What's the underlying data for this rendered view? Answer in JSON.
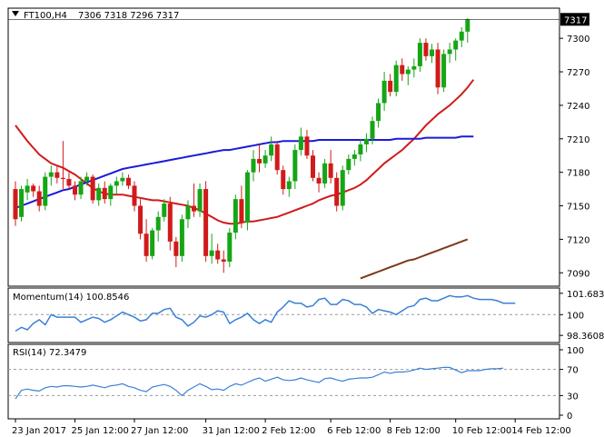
{
  "chart_data": [
    {
      "type": "candlestick",
      "title": "FT100,H4",
      "ohlc_label": "7306 7318 7296 7317",
      "ylim": [
        7078,
        7327
      ],
      "y_ticks": [
        7300,
        7270,
        7240,
        7210,
        7180,
        7150,
        7120,
        7090
      ],
      "last_price_label": "7317",
      "last_price": 7317,
      "x_ticks": [
        "23 Jan 2017",
        "25 Jan 12:00",
        "27 Jan 12:00",
        "31 Jan 12:00",
        "2 Feb 12:00",
        "6 Feb 12:00",
        "8 Feb 12:00",
        "10 Feb 12:00",
        "14 Feb 12:00"
      ],
      "x_tick_index": [
        0,
        10,
        20,
        32,
        42,
        53,
        63,
        74,
        84
      ],
      "candles": [
        [
          7165,
          7172,
          7132,
          7138
        ],
        [
          7140,
          7168,
          7136,
          7165
        ],
        [
          7162,
          7174,
          7155,
          7168
        ],
        [
          7168,
          7170,
          7158,
          7163
        ],
        [
          7163,
          7168,
          7145,
          7150
        ],
        [
          7150,
          7180,
          7146,
          7176
        ],
        [
          7176,
          7186,
          7168,
          7180
        ],
        [
          7180,
          7185,
          7170,
          7175
        ],
        [
          7175,
          7208,
          7165,
          7174
        ],
        [
          7174,
          7180,
          7165,
          7168
        ],
        [
          7168,
          7172,
          7155,
          7160
        ],
        [
          7160,
          7176,
          7156,
          7172
        ],
        [
          7172,
          7180,
          7168,
          7176
        ],
        [
          7176,
          7178,
          7152,
          7155
        ],
        [
          7155,
          7170,
          7150,
          7166
        ],
        [
          7166,
          7172,
          7152,
          7156
        ],
        [
          7156,
          7170,
          7150,
          7168
        ],
        [
          7168,
          7176,
          7160,
          7172
        ],
        [
          7172,
          7180,
          7168,
          7175
        ],
        [
          7175,
          7178,
          7165,
          7168
        ],
        [
          7168,
          7172,
          7145,
          7150
        ],
        [
          7150,
          7156,
          7120,
          7125
        ],
        [
          7125,
          7138,
          7100,
          7105
        ],
        [
          7105,
          7130,
          7102,
          7128
        ],
        [
          7128,
          7145,
          7118,
          7140
        ],
        [
          7140,
          7156,
          7136,
          7152
        ],
        [
          7152,
          7158,
          7110,
          7118
        ],
        [
          7118,
          7122,
          7095,
          7105
        ],
        [
          7105,
          7142,
          7100,
          7138
        ],
        [
          7138,
          7155,
          7130,
          7150
        ],
        [
          7150,
          7170,
          7140,
          7145
        ],
        [
          7145,
          7170,
          7140,
          7165
        ],
        [
          7165,
          7172,
          7100,
          7105
        ],
        [
          7105,
          7125,
          7098,
          7110
        ],
        [
          7110,
          7116,
          7098,
          7102
        ],
        [
          7102,
          7110,
          7090,
          7100
        ],
        [
          7100,
          7130,
          7095,
          7126
        ],
        [
          7126,
          7160,
          7120,
          7156
        ],
        [
          7156,
          7168,
          7130,
          7135
        ],
        [
          7135,
          7182,
          7128,
          7180
        ],
        [
          7180,
          7200,
          7172,
          7192
        ],
        [
          7192,
          7205,
          7180,
          7188
        ],
        [
          7188,
          7200,
          7184,
          7195
        ],
        [
          7195,
          7212,
          7190,
          7205
        ],
        [
          7205,
          7208,
          7178,
          7182
        ],
        [
          7182,
          7186,
          7160,
          7165
        ],
        [
          7165,
          7176,
          7158,
          7172
        ],
        [
          7172,
          7205,
          7165,
          7200
        ],
        [
          7200,
          7220,
          7195,
          7212
        ],
        [
          7212,
          7218,
          7192,
          7195
        ],
        [
          7195,
          7200,
          7172,
          7175
        ],
        [
          7175,
          7180,
          7162,
          7170
        ],
        [
          7170,
          7192,
          7166,
          7188
        ],
        [
          7188,
          7200,
          7170,
          7175
        ],
        [
          7175,
          7180,
          7145,
          7150
        ],
        [
          7150,
          7186,
          7146,
          7182
        ],
        [
          7182,
          7196,
          7178,
          7192
        ],
        [
          7192,
          7200,
          7186,
          7196
        ],
        [
          7196,
          7210,
          7190,
          7205
        ],
        [
          7205,
          7215,
          7198,
          7210
        ],
        [
          7210,
          7230,
          7205,
          7226
        ],
        [
          7226,
          7246,
          7220,
          7242
        ],
        [
          7242,
          7270,
          7235,
          7262
        ],
        [
          7262,
          7268,
          7248,
          7252
        ],
        [
          7252,
          7280,
          7248,
          7276
        ],
        [
          7276,
          7282,
          7262,
          7268
        ],
        [
          7268,
          7275,
          7258,
          7272
        ],
        [
          7272,
          7282,
          7265,
          7275
        ],
        [
          7275,
          7300,
          7270,
          7296
        ],
        [
          7296,
          7300,
          7280,
          7284
        ],
        [
          7284,
          7295,
          7278,
          7290
        ],
        [
          7290,
          7296,
          7250,
          7256
        ],
        [
          7256,
          7290,
          7252,
          7286
        ],
        [
          7286,
          7296,
          7278,
          7290
        ],
        [
          7290,
          7300,
          7280,
          7298
        ],
        [
          7298,
          7310,
          7292,
          7306
        ],
        [
          7306,
          7318,
          7296,
          7317
        ]
      ],
      "series": [
        {
          "name": "",
          "color": "#d11a1a",
          "start": 0,
          "values": [
            7222,
            7215,
            7208,
            7202,
            7196,
            7192,
            7188,
            7186,
            7184,
            7181,
            7178,
            7174,
            7170,
            7166,
            7163,
            7161,
            7160,
            7160,
            7160,
            7159,
            7158,
            7157,
            7156,
            7155,
            7155,
            7154,
            7153,
            7152,
            7151,
            7150,
            7148,
            7146,
            7143,
            7140,
            7137,
            7135,
            7134,
            7134,
            7135,
            7136,
            7136,
            7137,
            7138,
            7139,
            7140,
            7142,
            7144,
            7146,
            7148,
            7150,
            7152,
            7155,
            7157,
            7159,
            7160,
            7162,
            7164,
            7166,
            7169,
            7173,
            7178,
            7183,
            7188,
            7192,
            7196,
            7200,
            7205,
            7210,
            7216,
            7222,
            7227,
            7232,
            7236,
            7240,
            7245,
            7250,
            7256,
            7263
          ]
        },
        {
          "name": "",
          "color": "#1a1ad8",
          "start": 0,
          "values": [
            7148,
            7150,
            7152,
            7154,
            7156,
            7158,
            7160,
            7162,
            7164,
            7165,
            7167,
            7169,
            7171,
            7173,
            7175,
            7177,
            7179,
            7181,
            7183,
            7184,
            7185,
            7186,
            7187,
            7188,
            7189,
            7190,
            7191,
            7192,
            7193,
            7194,
            7195,
            7196,
            7197,
            7198,
            7199,
            7200,
            7200,
            7201,
            7202,
            7203,
            7204,
            7205,
            7206,
            7207,
            7207,
            7208,
            7208,
            7208,
            7208,
            7208,
            7208,
            7209,
            7209,
            7209,
            7209,
            7209,
            7209,
            7209,
            7209,
            7209,
            7209,
            7209,
            7209,
            7209,
            7210,
            7210,
            7210,
            7210,
            7210,
            7211,
            7211,
            7211,
            7211,
            7211,
            7211,
            7212,
            7212,
            7212
          ]
        },
        {
          "name": "",
          "color": "#7b3a14",
          "start": 58,
          "values": [
            7085,
            7087,
            7089,
            7091,
            7093,
            7095,
            7097,
            7099,
            7101,
            7102,
            7104,
            7106,
            7108,
            7110,
            7112,
            7114,
            7116,
            7118,
            7120
          ]
        }
      ]
    },
    {
      "type": "line",
      "title": "Momentum(14) 100.8546",
      "ylim": [
        97.8,
        102.1
      ],
      "y_tick_labels": [
        "101.683",
        "100",
        "98.3608"
      ],
      "y_tick_values": [
        101.683,
        100,
        98.3608
      ],
      "series": [
        {
          "name": "Momentum(14)",
          "color": "#3a80d8",
          "values": [
            98.7,
            99.0,
            98.8,
            99.3,
            99.6,
            99.2,
            100.0,
            99.8,
            99.8,
            99.8,
            99.8,
            99.4,
            99.6,
            99.8,
            99.7,
            99.4,
            99.6,
            99.9,
            100.2,
            100.0,
            99.8,
            99.5,
            99.6,
            100.1,
            100.1,
            100.4,
            100.5,
            99.8,
            99.6,
            99.1,
            99.4,
            99.9,
            99.8,
            100.0,
            100.3,
            100.2,
            99.3,
            99.6,
            99.8,
            100.1,
            99.6,
            99.3,
            99.6,
            99.4,
            100.2,
            100.6,
            101.1,
            100.9,
            100.9,
            100.6,
            100.7,
            101.2,
            101.3,
            100.8,
            100.8,
            101.2,
            101.1,
            100.8,
            100.8,
            100.6,
            100.1,
            100.4,
            100.3,
            100.2,
            100.0,
            100.3,
            100.6,
            100.7,
            101.2,
            101.3,
            101.1,
            101.1,
            101.3,
            101.5,
            101.4,
            101.4,
            101.5,
            101.3,
            101.2,
            101.2,
            101.2,
            101.1,
            100.9,
            100.9,
            100.9
          ]
        }
      ]
    },
    {
      "type": "line",
      "title": "RSI(14) 72.3479",
      "ylim": [
        0,
        100
      ],
      "y_ticks": [
        100,
        70,
        30,
        0
      ],
      "series": [
        {
          "name": "RSI(14)",
          "color": "#3a80d8",
          "values": [
            25,
            38,
            40,
            38,
            37,
            42,
            44,
            43,
            45,
            45,
            44,
            43,
            44,
            46,
            44,
            42,
            45,
            46,
            48,
            44,
            42,
            38,
            36,
            43,
            45,
            47,
            44,
            38,
            30,
            38,
            43,
            48,
            44,
            39,
            40,
            38,
            44,
            48,
            46,
            50,
            54,
            57,
            52,
            55,
            58,
            54,
            53,
            54,
            57,
            54,
            52,
            50,
            56,
            57,
            54,
            52,
            55,
            56,
            57,
            57,
            58,
            62,
            66,
            64,
            66,
            66,
            67,
            69,
            72,
            70,
            71,
            72,
            73,
            73,
            69,
            65,
            68,
            68,
            68,
            70,
            71,
            71,
            72
          ]
        }
      ]
    }
  ]
}
